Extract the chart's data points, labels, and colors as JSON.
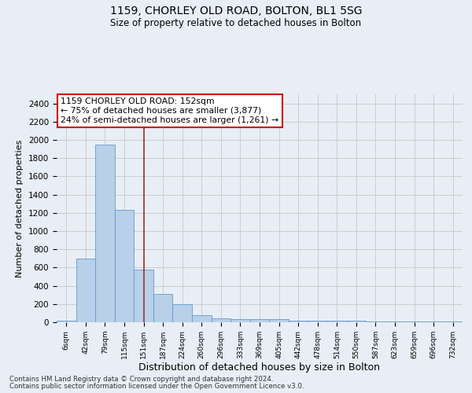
{
  "title_line1": "1159, CHORLEY OLD ROAD, BOLTON, BL1 5SG",
  "title_line2": "Size of property relative to detached houses in Bolton",
  "xlabel": "Distribution of detached houses by size in Bolton",
  "ylabel": "Number of detached properties",
  "bar_labels": [
    "6sqm",
    "42sqm",
    "79sqm",
    "115sqm",
    "151sqm",
    "187sqm",
    "224sqm",
    "260sqm",
    "296sqm",
    "333sqm",
    "369sqm",
    "405sqm",
    "442sqm",
    "478sqm",
    "514sqm",
    "550sqm",
    "587sqm",
    "623sqm",
    "659sqm",
    "696sqm",
    "732sqm"
  ],
  "bar_values": [
    15,
    700,
    1950,
    1230,
    580,
    310,
    200,
    80,
    45,
    35,
    35,
    35,
    20,
    20,
    20,
    15,
    5,
    5,
    5,
    10,
    10
  ],
  "bar_color": "#b8d0e8",
  "bar_edge_color": "#6699cc",
  "property_line_x": 4,
  "property_line_color": "#993333",
  "annotation_text": "1159 CHORLEY OLD ROAD: 152sqm\n← 75% of detached houses are smaller (3,877)\n24% of semi-detached houses are larger (1,261) →",
  "annotation_box_color": "#ffffff",
  "annotation_box_edge_color": "#cc0000",
  "ylim": [
    0,
    2500
  ],
  "yticks": [
    0,
    200,
    400,
    600,
    800,
    1000,
    1200,
    1400,
    1600,
    1800,
    2000,
    2200,
    2400
  ],
  "grid_color": "#cccccc",
  "background_color": "#e8eef5",
  "footer_line1": "Contains HM Land Registry data © Crown copyright and database right 2024.",
  "footer_line2": "Contains public sector information licensed under the Open Government Licence v3.0."
}
